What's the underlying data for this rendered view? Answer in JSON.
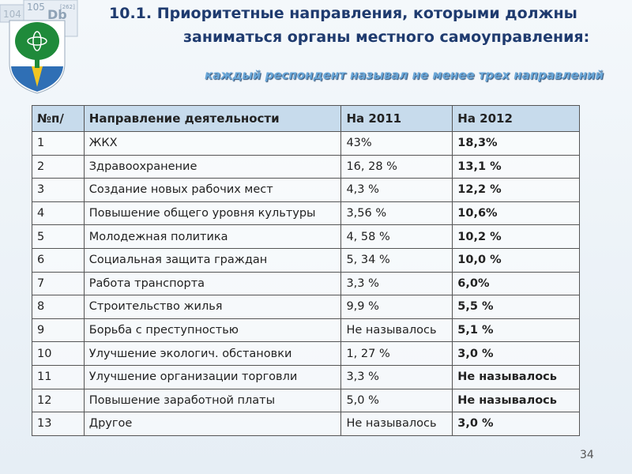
{
  "logo": {
    "tiles": [
      "104",
      "105",
      "Db",
      "[262]"
    ]
  },
  "header": {
    "title": [
      "10.1. Приоритетные направления, которыми должны",
      "заниматься органы местного самоуправления:"
    ],
    "subtitle": "каждый респондент называл не менее трех направлений"
  },
  "table": {
    "columns": [
      "№п/",
      "Направление деятельности",
      "На 2011",
      "На 2012"
    ],
    "rows": [
      [
        "1",
        "ЖКХ",
        "43%",
        "18,3%"
      ],
      [
        "2",
        "Здравоохранение",
        "16, 28 %",
        "13,1 %"
      ],
      [
        "3",
        "Создание новых рабочих мест",
        "4,3 %",
        "12,2 %"
      ],
      [
        "4",
        "Повышение общего уровня культуры",
        "3,56 %",
        "10,6%"
      ],
      [
        "5",
        "Молодежная политика",
        "4, 58 %",
        "10,2 %"
      ],
      [
        "6",
        "Социальная защита граждан",
        "5, 34 %",
        "10,0 %"
      ],
      [
        "7",
        "Работа транспорта",
        "3,3 %",
        "6,0%"
      ],
      [
        "8",
        "Строительство жилья",
        "9,9 %",
        "5,5 %"
      ],
      [
        "9",
        "Борьба с преступностью",
        "Не называлось",
        "5,1 %"
      ],
      [
        "10",
        "Улучшение экологич. обстановки",
        "1, 27 %",
        "3,0 %"
      ],
      [
        "11",
        "Улучшение организации торговли",
        "3,3 %",
        "Не называлось"
      ],
      [
        "12",
        "Повышение заработной платы",
        "5,0 %",
        "Не называлось"
      ],
      [
        "13",
        "Другое",
        "Не называлось",
        "3,0 %"
      ]
    ]
  },
  "page_number": "34"
}
